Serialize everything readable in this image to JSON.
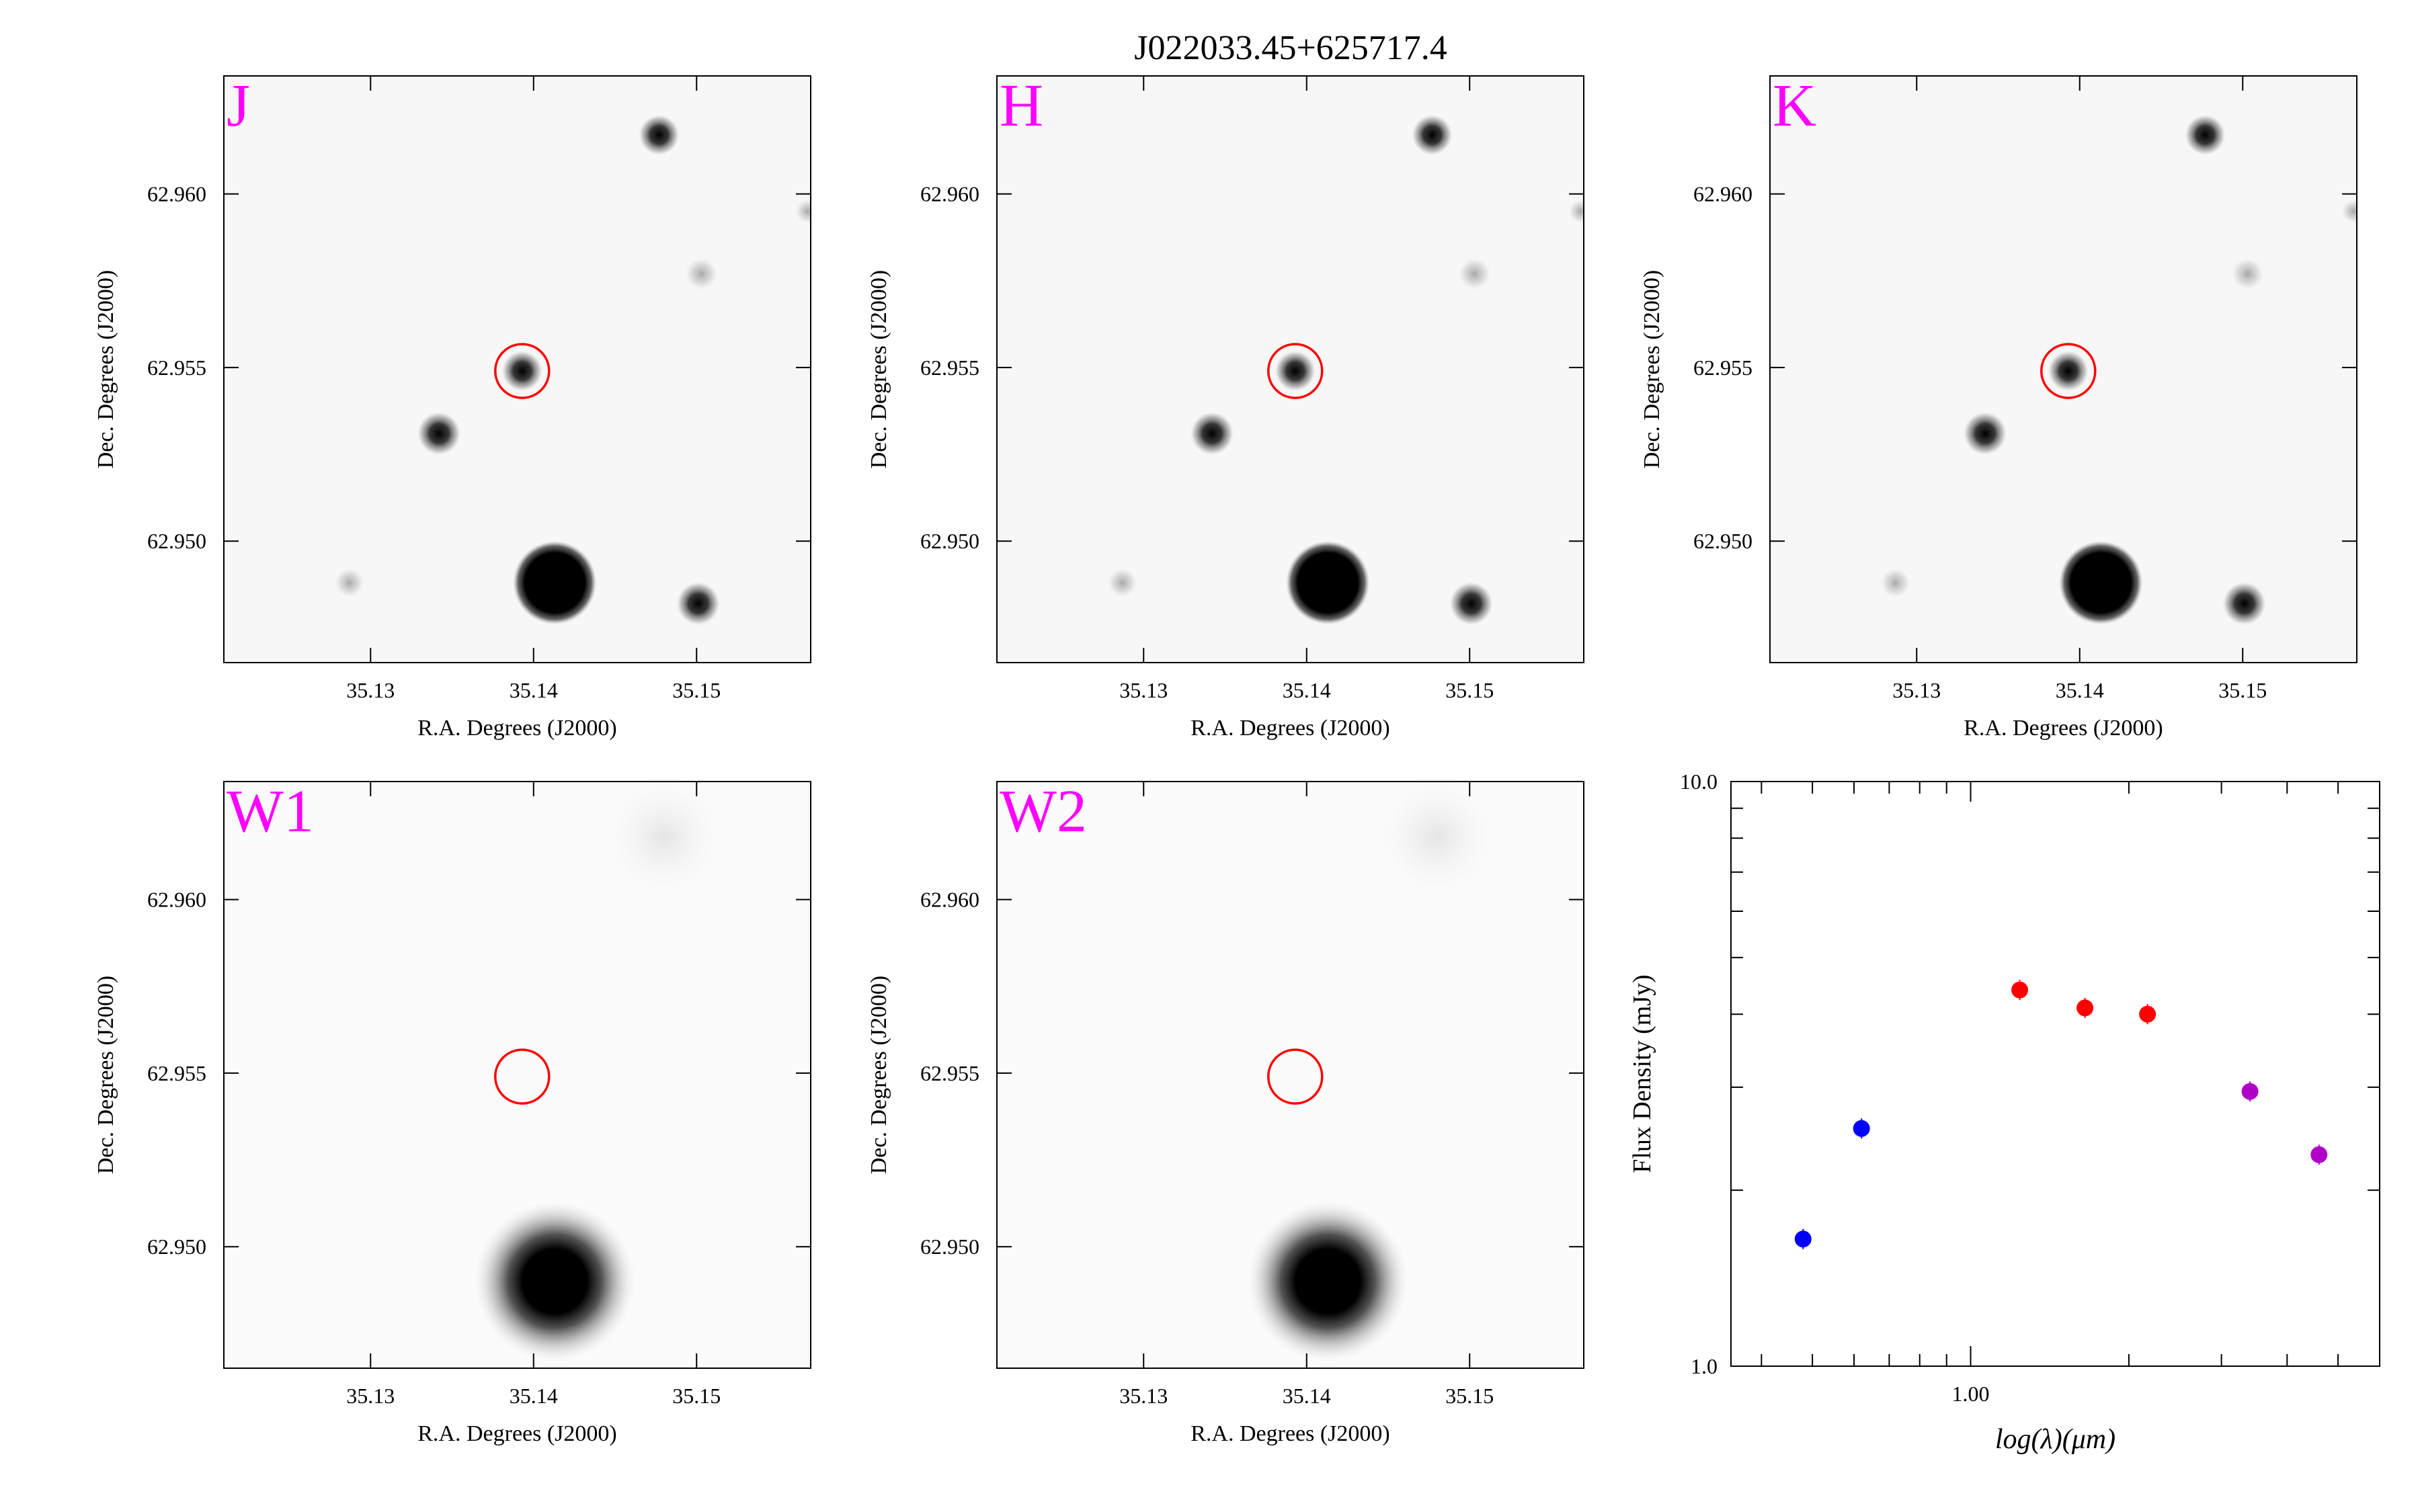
{
  "figure": {
    "title": "J022033.45+625717.4"
  },
  "image_panels": [
    {
      "band": "J",
      "label": "J",
      "label_color": "#ff00ff",
      "style": "point",
      "xlabel": "R.A. Degrees (J2000)",
      "ylabel": "Dec. Degrees (J2000)",
      "xticks": [
        "35.13",
        "35.14",
        "35.15"
      ],
      "yticks": [
        "62.960",
        "62.955",
        "62.950"
      ]
    },
    {
      "band": "H",
      "label": "H",
      "label_color": "#ff00ff",
      "style": "point",
      "xlabel": "R.A. Degrees (J2000)",
      "ylabel": "Dec. Degrees (J2000)",
      "xticks": [
        "35.13",
        "35.14",
        "35.15"
      ],
      "yticks": [
        "62.960",
        "62.955",
        "62.950"
      ]
    },
    {
      "band": "K",
      "label": "K",
      "label_color": "#ff00ff",
      "style": "point",
      "xlabel": "R.A. Degrees (J2000)",
      "ylabel": "Dec. Degrees (J2000)",
      "xticks": [
        "35.13",
        "35.14",
        "35.15"
      ],
      "yticks": [
        "62.960",
        "62.955",
        "62.950"
      ]
    },
    {
      "band": "W1",
      "label": "W1",
      "label_color": "#ff00ff",
      "style": "diffuse",
      "xlabel": "R.A. Degrees (J2000)",
      "ylabel": "Dec. Degrees (J2000)",
      "xticks": [
        "35.13",
        "35.14",
        "35.15"
      ],
      "yticks": [
        "62.960",
        "62.955",
        "62.950"
      ]
    },
    {
      "band": "W2",
      "label": "W2",
      "label_color": "#ff00ff",
      "style": "diffuse",
      "xlabel": "R.A. Degrees (J2000)",
      "ylabel": "Dec. Degrees (J2000)",
      "xticks": [
        "35.13",
        "35.14",
        "35.15"
      ],
      "yticks": [
        "62.960",
        "62.955",
        "62.950"
      ]
    }
  ],
  "target": {
    "ra": 35.1393,
    "dec": 62.9549,
    "circle_color": "#ff0000"
  },
  "field": {
    "ra_range": [
      35.121,
      35.157
    ],
    "dec_range": [
      62.9465,
      62.9634
    ]
  },
  "chart_data": {
    "type": "scatter",
    "title": "",
    "xlabel": "log(λ)(μm)",
    "ylabel": "Flux Density (mJy)",
    "xscale": "log",
    "yscale": "log",
    "xlim": [
      0.35,
      6.0
    ],
    "ylim": [
      1.0,
      10.0
    ],
    "xticks": [
      "1.00"
    ],
    "yticks": [
      "10.0",
      "1.0"
    ],
    "grid": false,
    "legend": "none",
    "series": [
      {
        "color": "#0000ff",
        "x": [
          0.48,
          0.62
        ],
        "y": [
          1.65,
          2.55
        ]
      },
      {
        "color": "#ff0000",
        "x": [
          1.24,
          1.65,
          2.17
        ],
        "y": [
          4.4,
          4.1,
          4.0
        ]
      },
      {
        "color": "#b000c8",
        "x": [
          3.4,
          4.6
        ],
        "y": [
          2.95,
          2.3
        ]
      }
    ]
  }
}
